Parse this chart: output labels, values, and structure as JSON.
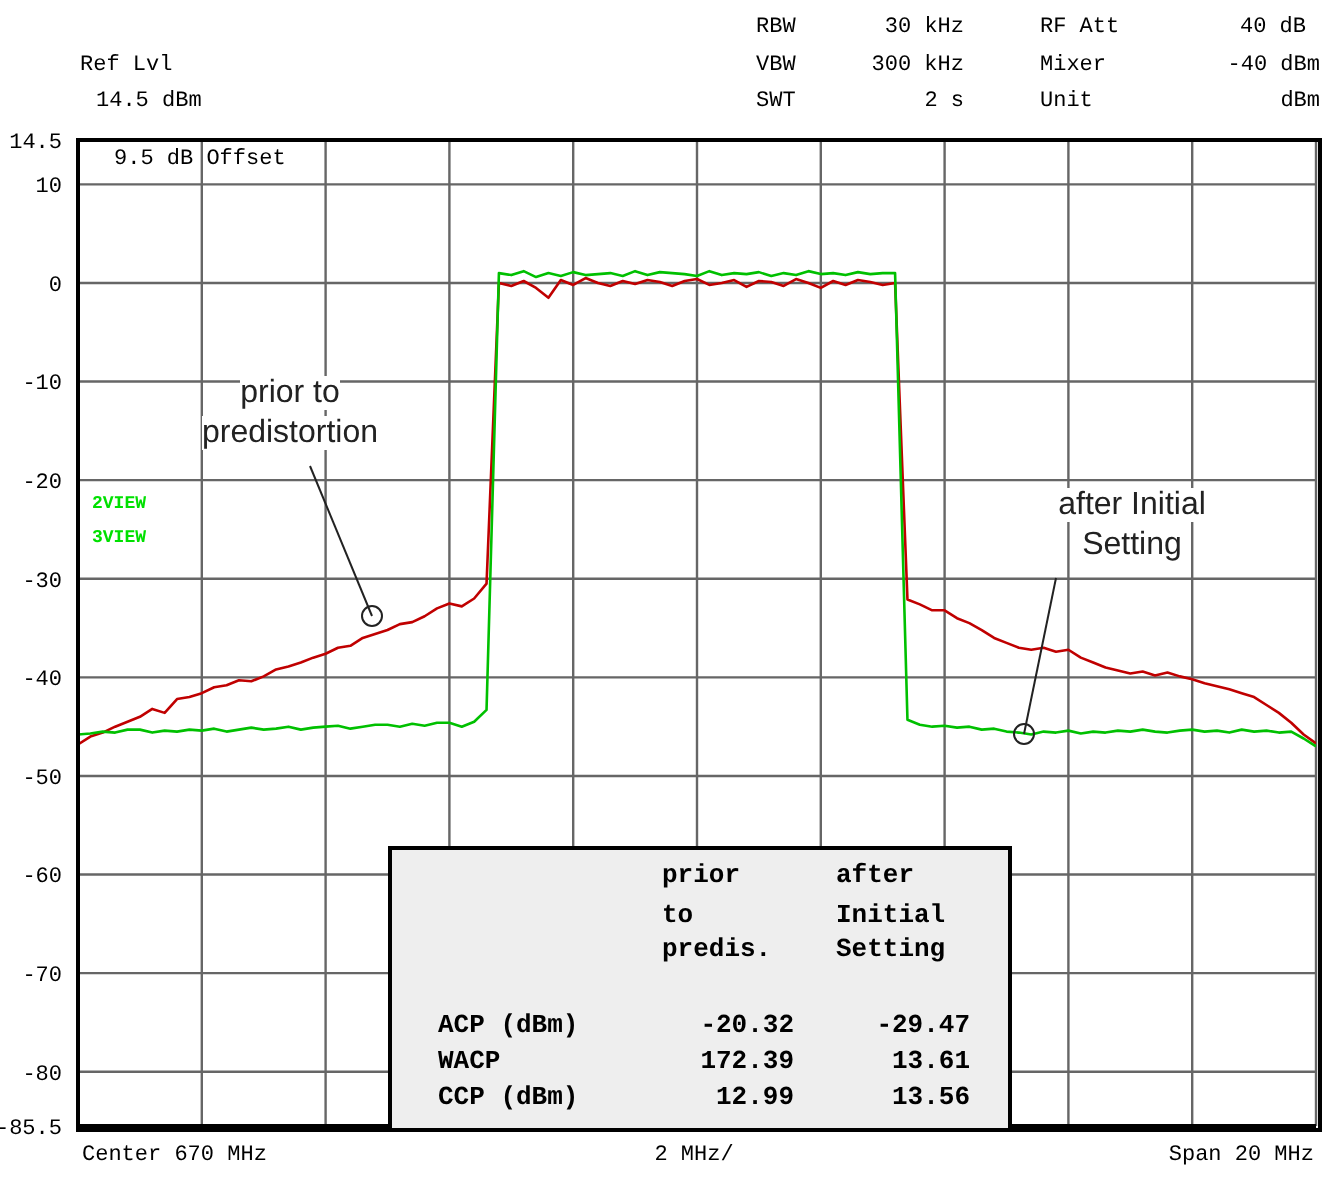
{
  "chart_data": {
    "type": "line",
    "categories": [
      null,
      null,
      null,
      null,
      null,
      null,
      null,
      null,
      null,
      null,
      null,
      null,
      null,
      null,
      null,
      null,
      null,
      null,
      null,
      null,
      null,
      null,
      null,
      null,
      null,
      null,
      null,
      null,
      null,
      null,
      null,
      null,
      null,
      null,
      null,
      null,
      null,
      null,
      null,
      null,
      null,
      null,
      null,
      null,
      null,
      null,
      null,
      null,
      null,
      null,
      null,
      null,
      null,
      null,
      null,
      null,
      null,
      null,
      null,
      null,
      null,
      null,
      null,
      null,
      null,
      null,
      null,
      null,
      null,
      null,
      null,
      null,
      null,
      null,
      null,
      null,
      null,
      null,
      null,
      null,
      null,
      null,
      null,
      null,
      null,
      null,
      null,
      null,
      null,
      null,
      null,
      null,
      null,
      null,
      null,
      null,
      null,
      null,
      null,
      null,
      null
    ],
    "ylim": [
      -85.5,
      14.5
    ],
    "yticks": [
      -85.5,
      -80,
      -70,
      -60,
      -50,
      -40,
      -30,
      -20,
      -10,
      0,
      10,
      14.5
    ],
    "tick_labels": "y",
    "grid": true,
    "marker": "none",
    "line_style": "solid",
    "series": [
      {
        "color": "#c00000",
        "values": [
          -46.8,
          -46.0,
          -45.6,
          -45.0,
          -44.5,
          -44.0,
          -43.2,
          -43.6,
          -42.2,
          -42.0,
          -41.6,
          -41.0,
          -40.8,
          -40.3,
          -40.4,
          -39.9,
          -39.2,
          -38.9,
          -38.5,
          -38.0,
          -37.6,
          -37.0,
          -36.8,
          -36.0,
          -35.6,
          -35.2,
          -34.6,
          -34.4,
          -33.8,
          -33.0,
          -32.5,
          -32.8,
          -32.0,
          -30.5,
          0,
          -0.3,
          0.2,
          -0.5,
          -1.5,
          0.3,
          -0.2,
          0.5,
          0,
          -0.3,
          0.2,
          -0.1,
          0.3,
          0.1,
          -0.3,
          0.2,
          0.4,
          -0.2,
          0,
          0.3,
          -0.4,
          0.2,
          0.1,
          -0.3,
          0.4,
          0,
          -0.5,
          0.2,
          -0.2,
          0.3,
          0.1,
          -0.2,
          0,
          -32.1,
          -32.6,
          -33.2,
          -33.2,
          -34.0,
          -34.5,
          -35.2,
          -36.0,
          -36.5,
          -37.0,
          -37.2,
          -37.0,
          -37.4,
          -37.2,
          -38.0,
          -38.5,
          -39.0,
          -39.3,
          -39.6,
          -39.4,
          -39.8,
          -39.5,
          -39.9,
          -40.2,
          -40.6,
          -40.9,
          -41.2,
          -41.6,
          -42.0,
          -42.8,
          -43.6,
          -44.6,
          -45.8,
          -46.7
        ]
      },
      {
        "color": "#00c000",
        "values": [
          -45.8,
          -45.7,
          -45.5,
          -45.6,
          -45.3,
          -45.3,
          -45.6,
          -45.4,
          -45.5,
          -45.3,
          -45.4,
          -45.2,
          -45.5,
          -45.3,
          -45.1,
          -45.3,
          -45.2,
          -45.0,
          -45.3,
          -45.1,
          -45.0,
          -44.9,
          -45.2,
          -45.0,
          -44.8,
          -44.8,
          -45.0,
          -44.7,
          -44.9,
          -44.6,
          -44.6,
          -45.0,
          -44.5,
          -43.3,
          1.0,
          0.8,
          1.2,
          0.6,
          1.0,
          0.7,
          1.1,
          0.8,
          0.9,
          1.0,
          0.7,
          1.2,
          0.8,
          1.1,
          1.0,
          0.9,
          0.7,
          1.2,
          0.8,
          1.0,
          0.9,
          1.1,
          0.7,
          1.0,
          0.8,
          1.2,
          0.9,
          1.0,
          0.8,
          1.1,
          0.9,
          1.0,
          1.0,
          -44.3,
          -44.8,
          -45.0,
          -44.9,
          -45.1,
          -45.0,
          -45.3,
          -45.2,
          -45.5,
          -45.6,
          -45.8,
          -45.5,
          -45.6,
          -45.4,
          -45.7,
          -45.5,
          -45.6,
          -45.4,
          -45.5,
          -45.3,
          -45.5,
          -45.6,
          -45.4,
          -45.3,
          -45.5,
          -45.4,
          -45.6,
          -45.3,
          -45.5,
          -45.4,
          -45.6,
          -45.5,
          -46.2,
          -47.0
        ]
      }
    ],
    "annotations": [
      "Ref Lvl",
      "14.5 dBm",
      "RBW",
      "30 kHz",
      "RF Att",
      "40 dB",
      "VBW",
      "300 kHz",
      "Mixer",
      "-40 dBm",
      "SWT",
      "2 s",
      "Unit",
      "dBm",
      "9.5 dB Offset",
      "2VIEW",
      "3VIEW",
      "Center 670 MHz",
      "2 MHz/",
      "Span 20 MHz",
      "prior to predistortion",
      "after Initial Setting",
      "prior",
      "to",
      "predis.",
      "after",
      "Initial",
      "Setting",
      "ACP (dBm)",
      "-20.32",
      "-29.47",
      "WACP",
      "172.39",
      "13.61",
      "CCP (dBm)",
      "12.99",
      "13.56"
    ]
  }
}
